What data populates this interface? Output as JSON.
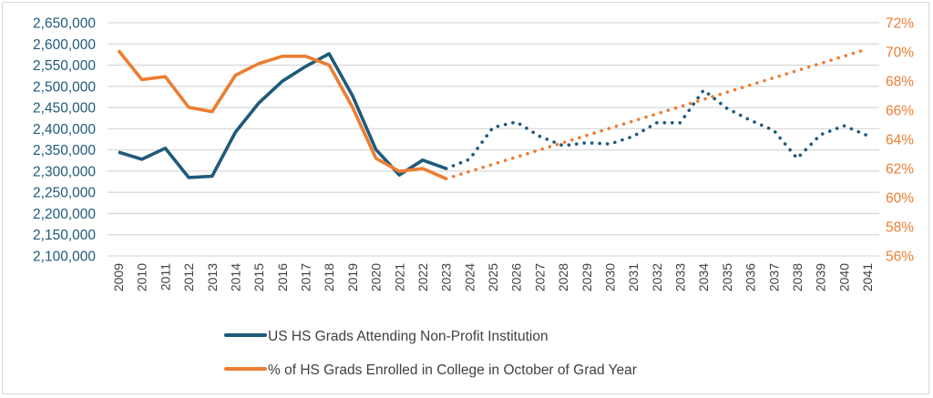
{
  "chart_data": {
    "type": "line",
    "title": "",
    "xlabel": "",
    "ylabel": "",
    "y2label": "",
    "grid": true,
    "legend_position": "bottom",
    "x": [
      "2009",
      "2010",
      "2011",
      "2012",
      "2013",
      "2014",
      "2015",
      "2016",
      "2017",
      "2018",
      "2019",
      "2020",
      "2021",
      "2022",
      "2023",
      "2024",
      "2025",
      "2026",
      "2027",
      "2028",
      "2029",
      "2030",
      "2031",
      "2032",
      "2033",
      "2034",
      "2035",
      "2036",
      "2037",
      "2038",
      "2039",
      "2040",
      "2041"
    ],
    "y_axis_left": {
      "min": 2100000,
      "max": 2650000,
      "step": 50000,
      "ticks": [
        "2,650,000",
        "2,600,000",
        "2,550,000",
        "2,500,000",
        "2,450,000",
        "2,400,000",
        "2,350,000",
        "2,300,000",
        "2,250,000",
        "2,200,000",
        "2,150,000",
        "2,100,000"
      ],
      "color": "#1f5a7a"
    },
    "y_axis_right": {
      "min": 56,
      "max": 72,
      "step": 2,
      "ticks": [
        "72%",
        "70%",
        "68%",
        "66%",
        "64%",
        "62%",
        "60%",
        "58%",
        "56%"
      ],
      "color": "#ed7d31"
    },
    "series": [
      {
        "name": "US HS Grads Attending Non-Profit Institution",
        "axis": "left",
        "color": "#1f5a7a",
        "actual_years": [
          "2009",
          "2010",
          "2011",
          "2012",
          "2013",
          "2014",
          "2015",
          "2016",
          "2017",
          "2018",
          "2019",
          "2020",
          "2021",
          "2022",
          "2023"
        ],
        "actual_values": [
          2345000,
          2328000,
          2354000,
          2285000,
          2288000,
          2392000,
          2461000,
          2512000,
          2547000,
          2577000,
          2478000,
          2351000,
          2291000,
          2326000,
          2306000
        ],
        "projected_years": [
          "2023",
          "2024",
          "2025",
          "2026",
          "2027",
          "2028",
          "2029",
          "2030",
          "2031",
          "2032",
          "2033",
          "2034",
          "2035",
          "2036",
          "2037",
          "2038",
          "2039",
          "2040",
          "2041"
        ],
        "projected_values": [
          2306000,
          2328000,
          2403000,
          2416000,
          2382000,
          2360000,
          2367000,
          2364000,
          2382000,
          2414000,
          2414000,
          2491000,
          2448000,
          2420000,
          2396000,
          2330000,
          2386000,
          2407000,
          2384000
        ]
      },
      {
        "name": "% of HS Grads Enrolled in College in October of Grad Year",
        "axis": "right",
        "color": "#ed7d31",
        "actual_years": [
          "2009",
          "2010",
          "2011",
          "2012",
          "2013",
          "2014",
          "2015",
          "2016",
          "2017",
          "2018",
          "2019",
          "2020",
          "2021",
          "2022",
          "2023"
        ],
        "actual_values": [
          70.1,
          68.1,
          68.3,
          66.2,
          65.9,
          68.4,
          69.2,
          69.7,
          69.7,
          69.1,
          66.2,
          62.7,
          61.8,
          62.0,
          61.3
        ],
        "projected_years": [
          "2023",
          "2041"
        ],
        "projected_values": [
          61.3,
          70.2
        ]
      }
    ]
  },
  "legend": {
    "items": [
      {
        "label": "US HS Grads Attending Non-Profit Institution",
        "color": "#1f5a7a"
      },
      {
        "label": "% of HS Grads Enrolled in College in October of Grad Year",
        "color": "#ed7d31"
      }
    ]
  },
  "colors": {
    "grid": "#d9d9d9",
    "blue": "#1f5a7a",
    "orange": "#ed7d31",
    "tick_text": "#404040"
  }
}
